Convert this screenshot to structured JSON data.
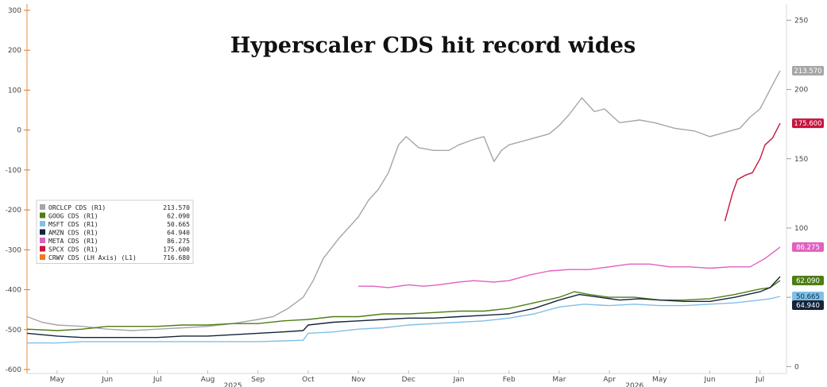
{
  "chart_data": {
    "type": "line",
    "title": "Hyperscaler CDS hit record wides",
    "left_axis": {
      "ticks": [
        300,
        200,
        100,
        0,
        -100,
        -200,
        -300,
        -400,
        -500,
        -600
      ],
      "range": [
        -610,
        310
      ]
    },
    "right_axis": {
      "ticks": [
        250,
        200,
        150,
        100,
        50,
        0
      ],
      "range": [
        -5,
        260
      ]
    },
    "x_axis": {
      "months": [
        "May",
        "Jun",
        "Jul",
        "Aug",
        "Sep",
        "Oct",
        "Nov",
        "Dec",
        "Jan",
        "Feb",
        "Mar",
        "Apr",
        "May",
        "Jun",
        "Jul"
      ],
      "years": [
        {
          "label": "2025",
          "index": 3.5
        },
        {
          "label": "2026",
          "index": 11.5
        }
      ],
      "range": [
        -0.6,
        14.4
      ]
    },
    "grid": false,
    "legend": {
      "placement": "left",
      "entries": [
        {
          "name": "ORCLCP CDS (R1)",
          "value": "213.570",
          "color": "#a6a6a6"
        },
        {
          "name": "GOOG CDS (R1)",
          "value": "62.090",
          "color": "#4e7d16"
        },
        {
          "name": "MSFT CDS (R1)",
          "value": "50.665",
          "color": "#7fc0e8"
        },
        {
          "name": "AMZN CDS (R1)",
          "value": "64.940",
          "color": "#14243a"
        },
        {
          "name": "META CDS (R1)",
          "value": "86.275",
          "color": "#e060c0"
        },
        {
          "name": "SPCX CDS (R1)",
          "value": "175.600",
          "color": "#c8143c"
        },
        {
          "name": "CRWV CDS (LH Axis) (L1)",
          "value": "716.680",
          "color": "#f07820"
        }
      ]
    },
    "series": [
      {
        "name": "ORCLCP CDS (R1)",
        "axis": "right",
        "color": "#a6a6a6",
        "last_label": "213.570",
        "points": [
          [
            -0.6,
            36
          ],
          [
            -0.3,
            32
          ],
          [
            0,
            30
          ],
          [
            0.5,
            29
          ],
          [
            1,
            27
          ],
          [
            1.5,
            26
          ],
          [
            2,
            27
          ],
          [
            2.5,
            28
          ],
          [
            3,
            29
          ],
          [
            3.5,
            31
          ],
          [
            4,
            34
          ],
          [
            4.3,
            36
          ],
          [
            4.6,
            42
          ],
          [
            4.9,
            50
          ],
          [
            5.1,
            62
          ],
          [
            5.3,
            78
          ],
          [
            5.6,
            92
          ],
          [
            5.8,
            100
          ],
          [
            6.0,
            108
          ],
          [
            6.2,
            120
          ],
          [
            6.4,
            128
          ],
          [
            6.6,
            140
          ],
          [
            6.8,
            160
          ],
          [
            6.95,
            166
          ],
          [
            7.2,
            158
          ],
          [
            7.5,
            156
          ],
          [
            7.8,
            156
          ],
          [
            8.0,
            160
          ],
          [
            8.3,
            164
          ],
          [
            8.5,
            166
          ],
          [
            8.7,
            148
          ],
          [
            8.85,
            156
          ],
          [
            9.0,
            160
          ],
          [
            9.4,
            164
          ],
          [
            9.8,
            168
          ],
          [
            10.0,
            174
          ],
          [
            10.2,
            182
          ],
          [
            10.45,
            194
          ],
          [
            10.7,
            184
          ],
          [
            10.9,
            186
          ],
          [
            11.2,
            176
          ],
          [
            11.6,
            178
          ],
          [
            11.9,
            176
          ],
          [
            12.3,
            172
          ],
          [
            12.7,
            170
          ],
          [
            13.0,
            166
          ],
          [
            13.3,
            169
          ],
          [
            13.6,
            172
          ],
          [
            13.8,
            180
          ],
          [
            14.0,
            186
          ],
          [
            14.2,
            200
          ],
          [
            14.4,
            213.57
          ]
        ]
      },
      {
        "name": "GOOG CDS (R1)",
        "axis": "right",
        "color": "#4e7d16",
        "last_label": "62.090",
        "points": [
          [
            -0.6,
            27
          ],
          [
            0,
            26
          ],
          [
            0.5,
            27
          ],
          [
            1,
            29
          ],
          [
            1.5,
            29
          ],
          [
            2,
            29
          ],
          [
            2.5,
            30
          ],
          [
            3,
            30
          ],
          [
            3.5,
            31
          ],
          [
            4,
            31
          ],
          [
            4.5,
            33
          ],
          [
            5.0,
            34
          ],
          [
            5.5,
            36
          ],
          [
            6.0,
            36
          ],
          [
            6.5,
            38
          ],
          [
            7.0,
            38
          ],
          [
            7.5,
            39
          ],
          [
            8.0,
            40
          ],
          [
            8.5,
            40
          ],
          [
            9.0,
            42
          ],
          [
            9.5,
            46
          ],
          [
            10.0,
            50
          ],
          [
            10.3,
            54
          ],
          [
            10.6,
            52
          ],
          [
            11.0,
            50
          ],
          [
            11.5,
            50
          ],
          [
            12.0,
            48
          ],
          [
            12.5,
            48
          ],
          [
            13.0,
            49
          ],
          [
            13.5,
            52
          ],
          [
            14.0,
            56
          ],
          [
            14.2,
            57
          ],
          [
            14.4,
            62.09
          ]
        ]
      },
      {
        "name": "MSFT CDS (R1)",
        "axis": "right",
        "color": "#7fc0e8",
        "last_label": "50.665",
        "points": [
          [
            -0.6,
            17
          ],
          [
            0,
            17
          ],
          [
            0.5,
            18
          ],
          [
            1,
            18
          ],
          [
            1.5,
            18
          ],
          [
            2,
            18
          ],
          [
            2.5,
            18
          ],
          [
            3,
            18
          ],
          [
            3.5,
            18
          ],
          [
            4,
            18
          ],
          [
            4.5,
            18.5
          ],
          [
            4.9,
            19
          ],
          [
            5.0,
            24
          ],
          [
            5.5,
            25
          ],
          [
            6.0,
            27
          ],
          [
            6.5,
            28
          ],
          [
            7.0,
            30
          ],
          [
            7.5,
            31
          ],
          [
            8.0,
            32
          ],
          [
            8.5,
            33
          ],
          [
            9.0,
            35
          ],
          [
            9.5,
            38
          ],
          [
            10.0,
            43
          ],
          [
            10.5,
            45
          ],
          [
            11.0,
            44
          ],
          [
            11.5,
            45
          ],
          [
            12.0,
            44
          ],
          [
            12.5,
            44
          ],
          [
            13.0,
            45
          ],
          [
            13.5,
            46
          ],
          [
            14.0,
            48
          ],
          [
            14.2,
            49
          ],
          [
            14.4,
            50.665
          ]
        ]
      },
      {
        "name": "AMZN CDS (R1)",
        "axis": "right",
        "color": "#14243a",
        "last_label": "64.940",
        "points": [
          [
            -0.6,
            24
          ],
          [
            0,
            22
          ],
          [
            0.5,
            21
          ],
          [
            1,
            21
          ],
          [
            1.5,
            21
          ],
          [
            2,
            21
          ],
          [
            2.5,
            22
          ],
          [
            3,
            22
          ],
          [
            3.5,
            23
          ],
          [
            4,
            24
          ],
          [
            4.5,
            25
          ],
          [
            4.9,
            26
          ],
          [
            5.0,
            30
          ],
          [
            5.5,
            32
          ],
          [
            6.0,
            33
          ],
          [
            6.5,
            34
          ],
          [
            7.0,
            35
          ],
          [
            7.5,
            35
          ],
          [
            8.0,
            36
          ],
          [
            8.5,
            37
          ],
          [
            9.0,
            38
          ],
          [
            9.5,
            42
          ],
          [
            10.0,
            48
          ],
          [
            10.4,
            52
          ],
          [
            10.8,
            50
          ],
          [
            11.2,
            48
          ],
          [
            11.6,
            49
          ],
          [
            12.0,
            48
          ],
          [
            12.5,
            47
          ],
          [
            13.0,
            47
          ],
          [
            13.5,
            50
          ],
          [
            14.0,
            54
          ],
          [
            14.2,
            57
          ],
          [
            14.4,
            64.94
          ]
        ]
      },
      {
        "name": "META CDS (R1)",
        "axis": "right",
        "color": "#e060c0",
        "last_label": "86.275",
        "points": [
          [
            6.0,
            58
          ],
          [
            6.3,
            58
          ],
          [
            6.6,
            57
          ],
          [
            7.0,
            59
          ],
          [
            7.3,
            58
          ],
          [
            7.6,
            59
          ],
          [
            8.0,
            61
          ],
          [
            8.3,
            62
          ],
          [
            8.7,
            61
          ],
          [
            9.0,
            62
          ],
          [
            9.4,
            66
          ],
          [
            9.8,
            69
          ],
          [
            10.2,
            70
          ],
          [
            10.6,
            70
          ],
          [
            11.0,
            72
          ],
          [
            11.4,
            74
          ],
          [
            11.8,
            74
          ],
          [
            12.2,
            72
          ],
          [
            12.6,
            72
          ],
          [
            13.0,
            71
          ],
          [
            13.4,
            72
          ],
          [
            13.8,
            72
          ],
          [
            14.1,
            78
          ],
          [
            14.4,
            86.275
          ]
        ]
      },
      {
        "name": "SPCX CDS (R1)",
        "axis": "right",
        "color": "#c8143c",
        "last_label": "175.600",
        "points": [
          [
            13.3,
            105
          ],
          [
            13.45,
            125
          ],
          [
            13.55,
            135
          ],
          [
            13.7,
            138
          ],
          [
            13.85,
            140
          ],
          [
            14.0,
            150
          ],
          [
            14.1,
            160
          ],
          [
            14.25,
            165
          ],
          [
            14.4,
            175.6
          ]
        ]
      }
    ]
  }
}
